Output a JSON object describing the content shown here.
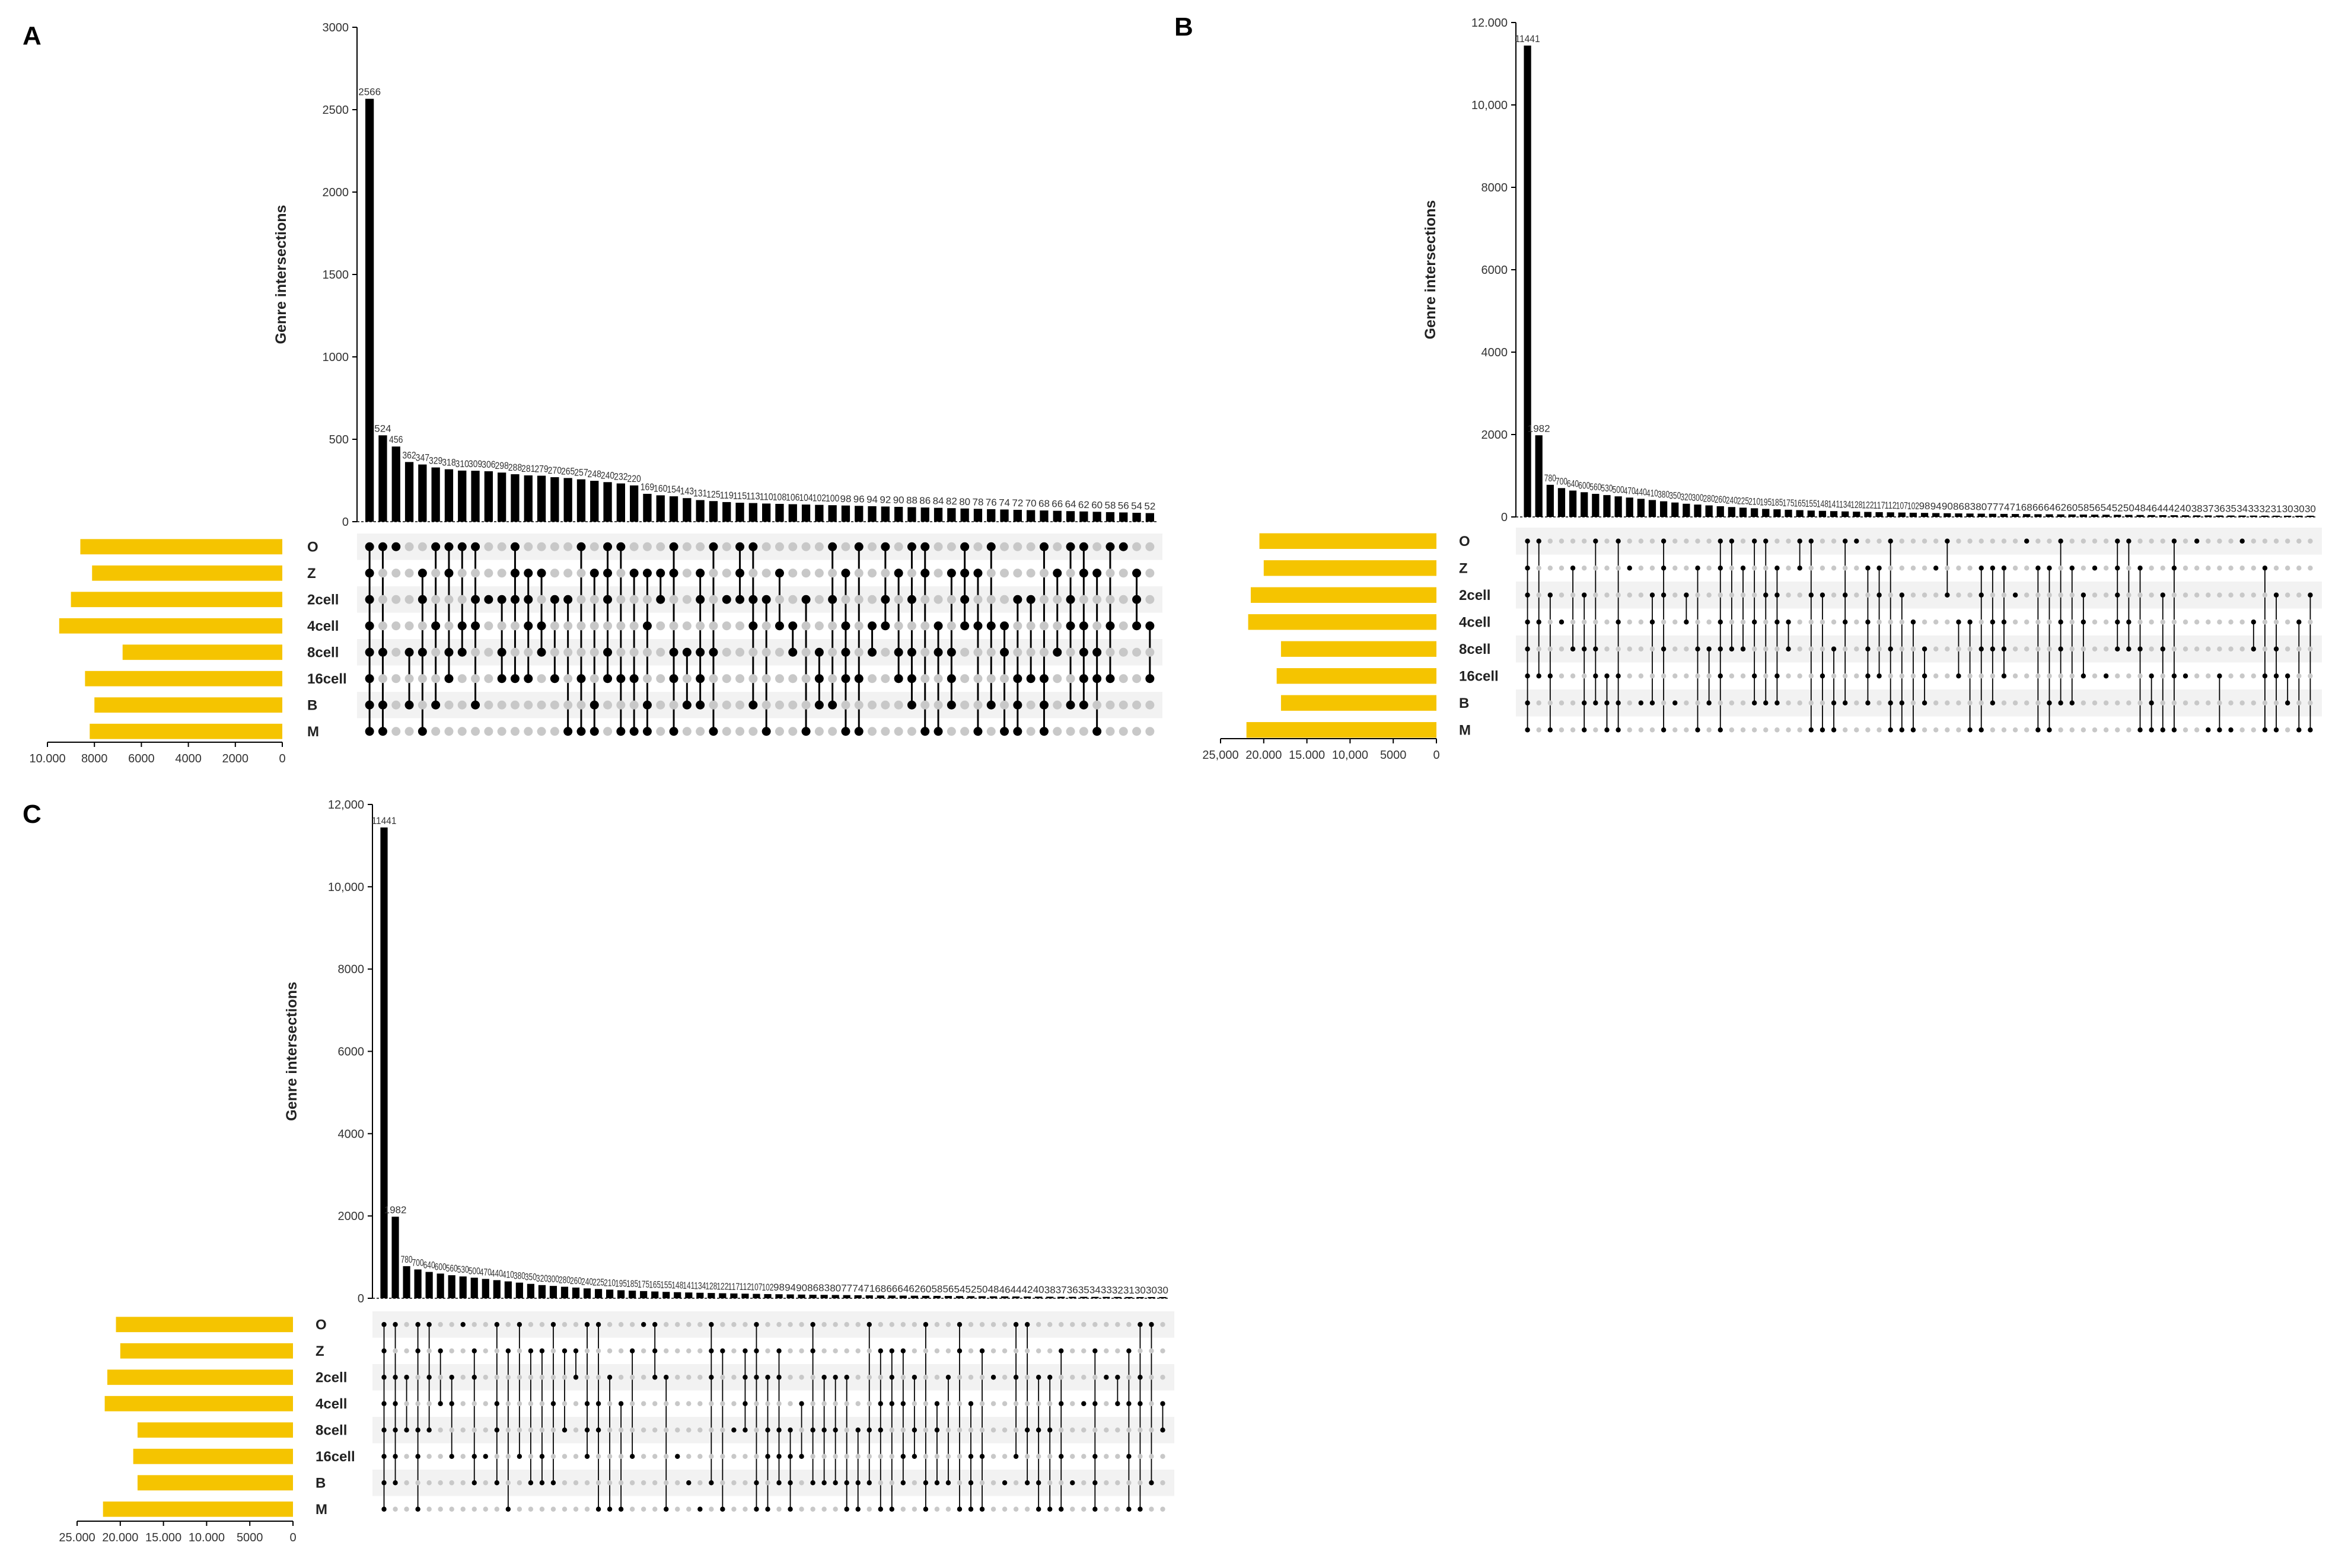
{
  "figure": {
    "colors": {
      "bar": "#000000",
      "set_bar": "#f5c400",
      "dot_on": "#000000",
      "dot_off": "#c8c8c8",
      "row_stripe": "#f2f2f2"
    },
    "panels": [
      {
        "letter": "A",
        "chart_data": {
          "type": "bar",
          "subtype": "upset",
          "ylabel": "Genre intersections",
          "ylim": [
            0,
            3000
          ],
          "y_ticks": [
            0,
            500,
            1000,
            1500,
            2000,
            2500,
            3000
          ],
          "y_tick_labels": [
            "0",
            "500",
            "1000",
            "1500",
            "2000",
            "2500",
            "3000"
          ],
          "sets": [
            "O",
            "Z",
            "2cell",
            "4cell",
            "8cell",
            "16cell",
            "B",
            "M"
          ],
          "set_sizes": [
            8600,
            8100,
            9000,
            9500,
            6800,
            8400,
            8000,
            8200
          ],
          "set_xlim": [
            10000,
            0
          ],
          "set_ticks": [
            10000,
            8000,
            6000,
            4000,
            2000,
            0
          ],
          "set_tick_labels": [
            "10.000",
            "8000",
            "6000",
            "4000",
            "2000",
            "0"
          ],
          "values": [
            2566,
            524,
            456,
            362,
            347,
            329,
            318,
            310,
            309,
            306,
            298,
            288,
            281,
            279,
            270,
            265,
            257,
            248,
            240,
            232,
            220,
            169,
            160,
            154,
            143,
            131,
            125,
            119,
            115,
            113,
            110,
            108,
            106,
            104,
            102,
            100,
            98,
            96,
            94,
            92,
            90,
            88,
            86,
            84,
            82,
            80,
            78,
            76,
            74,
            72,
            70,
            68,
            66,
            64,
            62,
            60,
            58,
            56,
            54,
            52
          ],
          "value_labels": [
            "2566",
            "524",
            "456",
            "362",
            "347",
            "329",
            "318",
            "310",
            "309",
            "306",
            "298",
            "288",
            "281",
            "279",
            "270",
            "265",
            "257",
            "248",
            "240",
            "232",
            "220",
            "169",
            "160",
            "154",
            "143",
            "131",
            "125",
            "119",
            "115",
            "113",
            "110",
            "108",
            "106",
            "104",
            "102",
            "100",
            "98",
            "96",
            "94",
            "92",
            "90",
            "88",
            "86",
            "84",
            "82",
            "80",
            "78",
            "76",
            "74",
            "72",
            "70",
            "68",
            "66",
            "64",
            "62",
            "60",
            "58",
            "56",
            "54",
            "52"
          ]
        }
      },
      {
        "letter": "B",
        "chart_data": {
          "type": "bar",
          "subtype": "upset",
          "ylabel": "Genre intersections",
          "ylim": [
            0,
            12000
          ],
          "y_ticks": [
            0,
            2000,
            4000,
            6000,
            8000,
            10000,
            12000
          ],
          "y_tick_labels": [
            "0",
            "2000",
            "4000",
            "6000",
            "8000",
            "10,000",
            "12.000"
          ],
          "sets": [
            "O",
            "Z",
            "2cell",
            "4cell",
            "8cell",
            "16cell",
            "B",
            "M"
          ],
          "set_sizes": [
            20500,
            20000,
            21500,
            21800,
            18000,
            18500,
            18000,
            22000
          ],
          "set_xlim": [
            25000,
            0
          ],
          "set_ticks": [
            25000,
            20000,
            15000,
            10000,
            5000,
            0
          ],
          "set_tick_labels": [
            "25,000",
            "20.000",
            "15.000",
            "10,000",
            "5000",
            "0"
          ],
          "values": [
            11441,
            1982,
            780,
            700,
            640,
            600,
            560,
            530,
            500,
            470,
            440,
            410,
            380,
            350,
            320,
            300,
            280,
            260,
            240,
            225,
            210,
            195,
            185,
            175,
            165,
            155,
            148,
            141,
            134,
            128,
            122,
            117,
            112,
            107,
            102,
            98,
            94,
            90,
            86,
            83,
            80,
            77,
            74,
            71,
            68,
            66,
            64,
            62,
            60,
            58,
            56,
            54,
            52,
            50,
            48,
            46,
            44,
            42,
            40,
            38,
            37,
            36,
            35,
            34,
            33,
            32,
            31,
            30,
            30,
            30
          ],
          "value_labels": [
            "11441",
            "1982",
            "780",
            "700",
            "640",
            "600",
            "560",
            "530",
            "500",
            "470",
            "440",
            "410",
            "380",
            "350",
            "320",
            "300",
            "280",
            "260",
            "240",
            "225",
            "210",
            "195",
            "185",
            "175",
            "165",
            "155",
            "148",
            "141",
            "134",
            "128",
            "122",
            "117",
            "112",
            "107",
            "102",
            "98",
            "94",
            "90",
            "86",
            "83",
            "80",
            "77",
            "74",
            "71",
            "68",
            "66",
            "64",
            "62",
            "60",
            "58",
            "56",
            "54",
            "52",
            "50",
            "48",
            "46",
            "44",
            "42",
            "40",
            "38",
            "37",
            "36",
            "35",
            "34",
            "33",
            "32",
            "31",
            "30",
            "30",
            "30"
          ]
        }
      },
      {
        "letter": "C",
        "chart_data": {
          "type": "bar",
          "subtype": "upset",
          "ylabel": "Genre intersections",
          "ylim": [
            0,
            12000
          ],
          "y_ticks": [
            0,
            2000,
            4000,
            6000,
            8000,
            10000,
            12000
          ],
          "y_tick_labels": [
            "0",
            "2000",
            "4000",
            "6000",
            "8000",
            "10,000",
            "12,000"
          ],
          "sets": [
            "O",
            "Z",
            "2cell",
            "4cell",
            "8cell",
            "16cell",
            "B",
            "M"
          ],
          "set_sizes": [
            20500,
            20000,
            21500,
            21800,
            18000,
            18500,
            18000,
            22000
          ],
          "set_xlim": [
            25000,
            0
          ],
          "set_ticks": [
            25000,
            20000,
            15000,
            10000,
            5000,
            0
          ],
          "set_tick_labels": [
            "25.000",
            "20.000",
            "15.000",
            "10.000",
            "5000",
            "0"
          ],
          "values": [
            11441,
            1982,
            780,
            700,
            640,
            600,
            560,
            530,
            500,
            470,
            440,
            410,
            380,
            350,
            320,
            300,
            280,
            260,
            240,
            225,
            210,
            195,
            185,
            175,
            165,
            155,
            148,
            141,
            134,
            128,
            122,
            117,
            112,
            107,
            102,
            98,
            94,
            90,
            86,
            83,
            80,
            77,
            74,
            71,
            68,
            66,
            64,
            62,
            60,
            58,
            56,
            54,
            52,
            50,
            48,
            46,
            44,
            42,
            40,
            38,
            37,
            36,
            35,
            34,
            33,
            32,
            31,
            30,
            30,
            30
          ],
          "value_labels": [
            "11441",
            "1982",
            "780",
            "700",
            "640",
            "600",
            "560",
            "530",
            "500",
            "470",
            "440",
            "410",
            "380",
            "350",
            "320",
            "300",
            "280",
            "260",
            "240",
            "225",
            "210",
            "195",
            "185",
            "175",
            "165",
            "155",
            "148",
            "141",
            "134",
            "128",
            "122",
            "117",
            "112",
            "107",
            "102",
            "98",
            "94",
            "90",
            "86",
            "83",
            "80",
            "77",
            "74",
            "71",
            "68",
            "66",
            "64",
            "62",
            "60",
            "58",
            "56",
            "54",
            "52",
            "50",
            "48",
            "46",
            "44",
            "42",
            "40",
            "38",
            "37",
            "36",
            "35",
            "34",
            "33",
            "32",
            "31",
            "30",
            "30",
            "30"
          ]
        }
      }
    ]
  }
}
